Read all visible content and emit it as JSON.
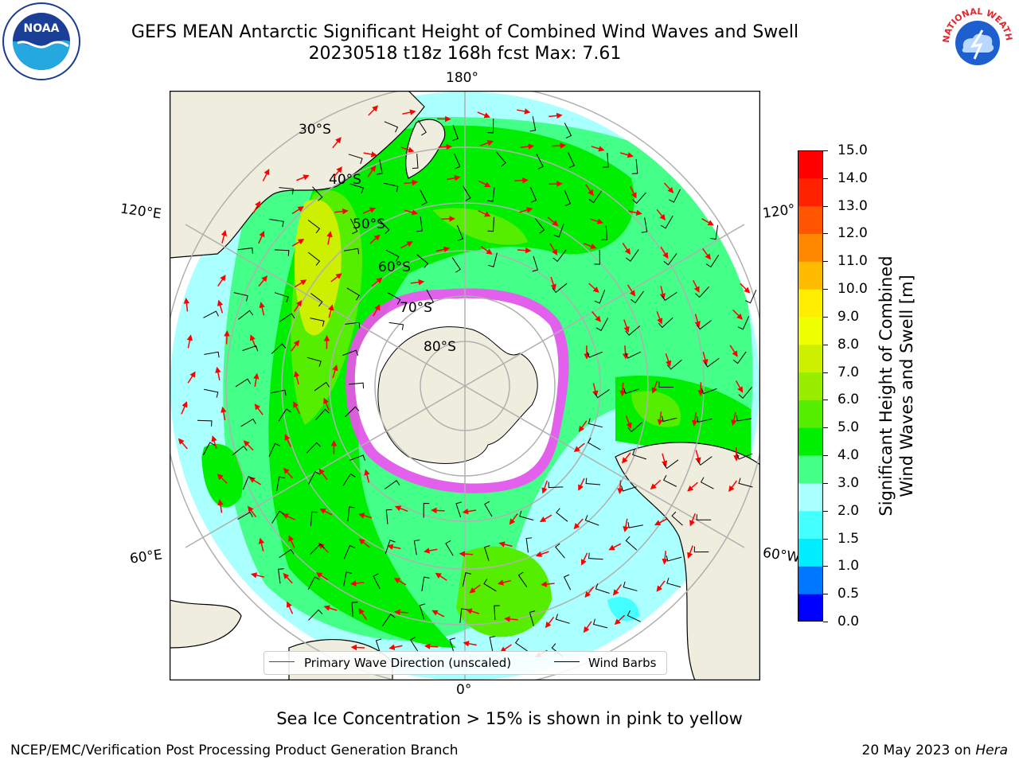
{
  "header": {
    "title_line1": "GEFS MEAN Antarctic Significant Height of Combined Wind Waves and Swell",
    "title_line2": "20230518 t18z 168h fcst   Max: 7.61"
  },
  "logos": {
    "left": {
      "icon": "noaa-logo",
      "text": "NOAA"
    },
    "right": {
      "icon": "nws-logo",
      "text": "NATIONAL WEATHER SERVICE"
    }
  },
  "map": {
    "projection": "south-polar-stereographic",
    "longitude_labels": {
      "top": "180°",
      "bottom": "0°",
      "left_upper": "120°E",
      "left_lower": "60°E",
      "right_upper": "120°",
      "right_lower": "60°W"
    },
    "latitude_labels": [
      "30°S",
      "40°S",
      "50°S",
      "60°S",
      "70°S",
      "80°S"
    ],
    "colors": {
      "land": "#efedde",
      "ice_shelf": "#ffffff",
      "sea_ice": "#ff44ff",
      "grid": "#b0b0b0",
      "wave_arrow": "#ff0000",
      "wind_barb": "#000000"
    }
  },
  "legend": {
    "primary_wave": "Primary Wave Direction (unscaled)",
    "wind_barbs": "Wind Barbs"
  },
  "colorbar": {
    "label_line1": "Significant Height of Combined",
    "label_line2": "Wind Waves and Swell [m]",
    "ticks": [
      "0.0",
      "0.5",
      "1.0",
      "1.5",
      "2.0",
      "3.0",
      "4.0",
      "5.0",
      "6.0",
      "7.0",
      "8.0",
      "9.0",
      "10.0",
      "11.0",
      "12.0",
      "13.0",
      "14.0",
      "15.0"
    ],
    "colors": [
      "#0000ff",
      "#0077ff",
      "#00eeff",
      "#44ffff",
      "#aaffff",
      "#44ff88",
      "#00ee00",
      "#55ee00",
      "#99ee00",
      "#ccf000",
      "#eeff00",
      "#ffee00",
      "#ffbb00",
      "#ff8800",
      "#ff5500",
      "#ff2200",
      "#ff0000"
    ]
  },
  "note": "Sea Ice Concentration > 15% is shown in pink to yellow",
  "footer": {
    "left": "NCEP/EMC/Verification Post Processing Product Generation Branch",
    "right_date": "20 May 2023 on ",
    "right_host": "Hera"
  }
}
